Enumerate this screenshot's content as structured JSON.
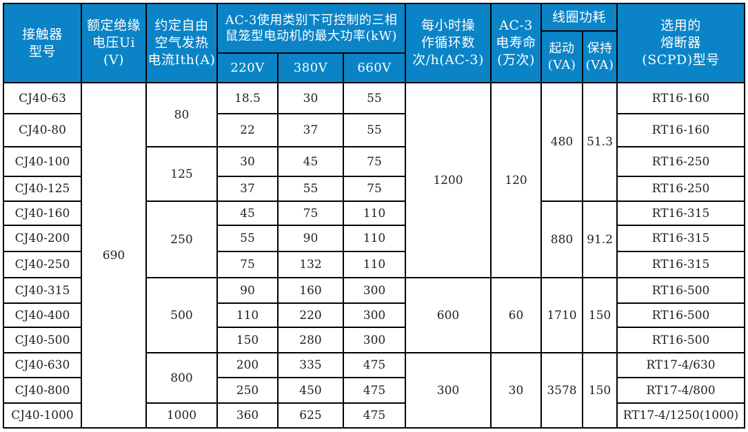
{
  "colors": {
    "header_bg": "#0b84c7",
    "header_text": "#ffffff",
    "border": "#000000",
    "body_text": "#1f1f1f",
    "page_bg": "#ffffff"
  },
  "header": {
    "model": "接触器\n型号",
    "ui": "额定绝缘\n电压Ui (V)",
    "ith": "约定自由\n空气发热\n电流Ith(A)",
    "ac3_power": "AC-3使用类别下可控制的三相\n鼠笼型电动机的最大功率(kW)",
    "v220": "220V",
    "v380": "380V",
    "v660": "660V",
    "cycles": "每小时操\n作循环数\n次/h(AC-3)",
    "life": "AC-3\n电寿命\n(万次)",
    "coil": "线圈功耗",
    "start": "起动\n(VA)",
    "hold": "保持\n(VA)",
    "fuse": "选用的\n熔断器\n(SCPD)型号"
  },
  "body": {
    "models": [
      "CJ40-63",
      "CJ40-80",
      "CJ40-100",
      "CJ40-125",
      "CJ40-160",
      "CJ40-200",
      "CJ40-250",
      "CJ40-315",
      "CJ40-400",
      "CJ40-500",
      "CJ40-630",
      "CJ40-800",
      "CJ40-1000"
    ],
    "rated_insulation_voltage": "690",
    "ith": [
      "80",
      "125",
      "250",
      "500",
      "800",
      "1000"
    ],
    "p220": [
      "18.5",
      "22",
      "30",
      "37",
      "45",
      "55",
      "75",
      "90",
      "110",
      "150",
      "200",
      "250",
      "360"
    ],
    "p380": [
      "30",
      "37",
      "45",
      "55",
      "75",
      "90",
      "132",
      "160",
      "220",
      "280",
      "335",
      "450",
      "625"
    ],
    "p660": [
      "55",
      "55",
      "75",
      "75",
      "110",
      "110",
      "110",
      "300",
      "300",
      "300",
      "475",
      "475",
      "475"
    ],
    "cycles": [
      "1200",
      "600",
      "300"
    ],
    "life": [
      "120",
      "60",
      "30"
    ],
    "start_va": [
      "480",
      "880",
      "1710",
      "3578"
    ],
    "hold_va": [
      "51.3",
      "91.2",
      "150",
      "150"
    ],
    "fuse": [
      "RT16-160",
      "RT16-160",
      "RT16-250",
      "RT16-250",
      "RT16-315",
      "RT16-315",
      "RT16-315",
      "RT16-500",
      "RT16-500",
      "RT16-500",
      "RT17-4/630",
      "RT17-4/800",
      "RT17-4/1250(1000)"
    ]
  }
}
